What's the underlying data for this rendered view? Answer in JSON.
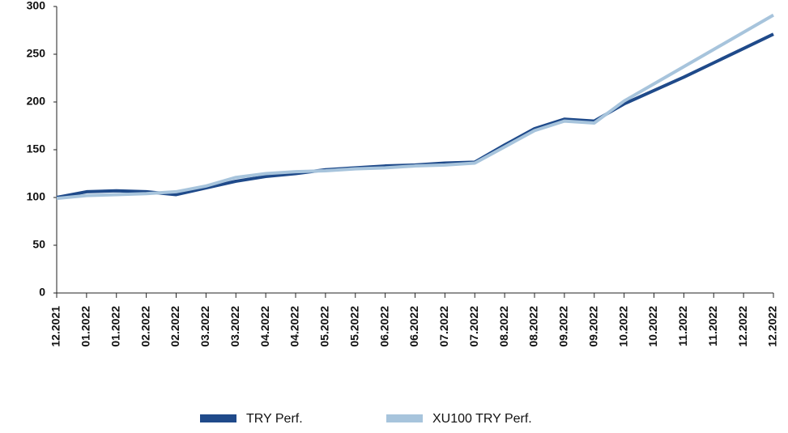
{
  "chart_data": {
    "type": "line",
    "categories": [
      "12.2021",
      "01.2022",
      "01.2022",
      "02.2022",
      "02.2022",
      "03.2022",
      "03.2022",
      "04.2022",
      "04.2022",
      "05.2022",
      "05.2022",
      "06.2022",
      "06.2022",
      "07.2022",
      "07.2022",
      "08.2022",
      "08.2022",
      "09.2022",
      "09.2022",
      "10.2022",
      "10.2022",
      "11.2022",
      "11.2022",
      "12.2022",
      "12.2022"
    ],
    "series": [
      {
        "name": "TRY Perf.",
        "color": "#1f4a8a",
        "values": [
          100,
          106,
          107,
          106,
          103,
          110,
          117,
          122,
          125,
          129,
          131,
          133,
          134,
          136,
          137,
          155,
          172,
          182,
          180,
          198,
          212,
          226,
          241,
          256,
          271
        ]
      },
      {
        "name": "XU100 TRY Perf.",
        "color": "#a7c4dc",
        "values": [
          99,
          102,
          103,
          104,
          106,
          112,
          121,
          125,
          127,
          128,
          130,
          131,
          133,
          134,
          136,
          153,
          170,
          180,
          178,
          201,
          219,
          237,
          255,
          273,
          291
        ]
      }
    ],
    "ylim": [
      0,
      300
    ],
    "yticks": [
      0,
      50,
      100,
      150,
      200,
      250,
      300
    ],
    "grid": false,
    "legend": "bottom"
  }
}
